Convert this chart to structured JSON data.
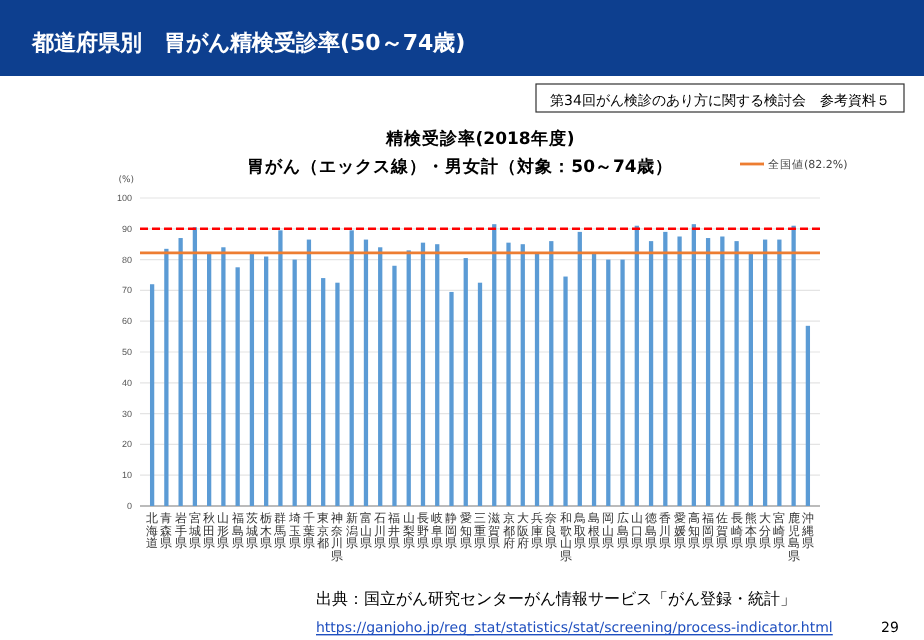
{
  "chart_data": {
    "type": "bar",
    "title": "精検受診率(2018年度)",
    "subtitle": "胃がん（エックス線）・男女計（対象：50～74歳）",
    "ylabel": "(%)",
    "annotations": [
      "都道府県別　胃がん精検受診率(50～74歳)",
      "第34回がん検診のあり方に関する検討会　参考資料５",
      "出典：国立がん研究センターがん情報サービス「がん登録・統計」",
      "https://ganjoho.jp/reg_stat/statistics/stat/screening/process-indicator.html",
      "29"
    ],
    "categories": [
      "北海道",
      "青森県",
      "岩手県",
      "宮城県",
      "秋田県",
      "山形県",
      "福島県",
      "茨城県",
      "栃木県",
      "群馬県",
      "埼玉県",
      "千葉県",
      "東京都",
      "神奈川県",
      "新潟県",
      "富山県",
      "石川県",
      "福井県",
      "山梨県",
      "長野県",
      "岐阜県",
      "静岡県",
      "愛知県",
      "三重県",
      "滋賀県",
      "京都府",
      "大阪府",
      "兵庫県",
      "奈良県",
      "和歌山県",
      "鳥取県",
      "島根県",
      "岡山県",
      "広島県",
      "山口県",
      "徳島県",
      "香川県",
      "愛媛県",
      "高知県",
      "福岡県",
      "佐賀県",
      "長崎県",
      "熊本県",
      "大分県",
      "宮崎県",
      "鹿児島県",
      "沖縄県"
    ],
    "values": [
      72,
      83.5,
      87,
      90.5,
      82,
      84,
      77.5,
      82,
      81,
      89.5,
      80,
      86.5,
      74,
      72.5,
      89.5,
      86.5,
      84,
      78,
      83,
      85.5,
      85,
      69.5,
      80.5,
      72.5,
      91.5,
      85.5,
      85,
      82,
      86,
      74.5,
      89,
      82,
      80,
      80,
      91,
      86,
      89,
      87.5,
      91.5,
      87,
      87.5,
      86,
      82,
      86.5,
      86.5,
      91,
      58.5
    ],
    "color": "#5b9bd5",
    "ylim": [
      0,
      100
    ],
    "yticks": [
      0,
      10,
      20,
      30,
      40,
      50,
      60,
      70,
      80,
      90,
      100
    ],
    "grid": "y",
    "legend": "top right",
    "ref_lines": [
      {
        "axis": "y",
        "value": 82.2,
        "label": "全国値(82.2%)",
        "color": "#ed7d31",
        "line_style": "solid"
      },
      {
        "axis": "y",
        "value": 90,
        "color": "#ff0000",
        "line_style": "dashed"
      }
    ]
  }
}
